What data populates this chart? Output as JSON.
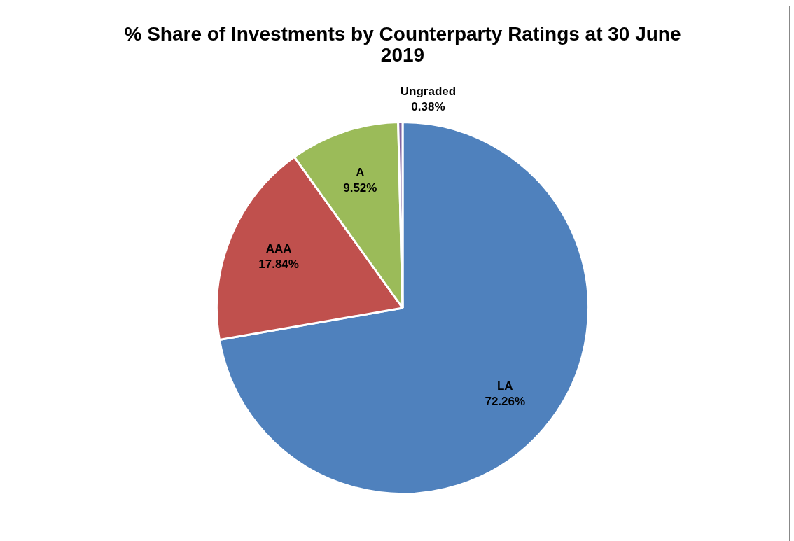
{
  "chart_data": {
    "type": "pie",
    "title": "% Share of Investments by Counterparty Ratings at 30 June 2019",
    "categories": [
      "LA",
      "AAA",
      "A",
      "Ungraded"
    ],
    "values": [
      72.26,
      17.84,
      9.52,
      0.38
    ],
    "colors": [
      "#4f81bd",
      "#c0504d",
      "#9bbb59",
      "#8064a2"
    ],
    "value_labels": [
      "72.26%",
      "17.84%",
      "9.52%",
      "0.38%"
    ],
    "legend": false
  }
}
